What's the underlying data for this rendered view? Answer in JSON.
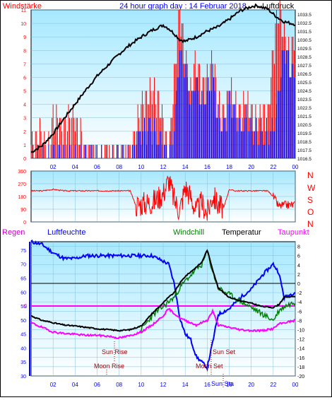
{
  "header": {
    "title": "24 hour graph day : 14 Februar 2018",
    "left_label": "Windstärke",
    "right_label": "Luftdruck"
  },
  "colors": {
    "plot_bg_top": "#a6e8ff",
    "plot_bg_bottom": "#ffffff",
    "wind_avg": "#0000ff",
    "wind_gust": "#ff0000",
    "pressure": "#000000",
    "humidity": "#0000ff",
    "temperature": "#000000",
    "windchill": "#008000",
    "dewpoint": "#ff00ff",
    "axis_red": "#ff0000",
    "axis_blue": "#0000ff",
    "axis_black": "#000000",
    "dark_red_text": "#cc0000"
  },
  "legend_bottom": {
    "regen": "Regen",
    "luftfeuchte": "Luftfeuchte",
    "windchill": "Windchill",
    "temperatur": "Temperatur",
    "taupunkt": "Taupunkt"
  },
  "compass_labels": [
    "N",
    "W",
    "S",
    "O",
    "N"
  ],
  "x_tick_labels": [
    "02",
    "04",
    "06",
    "08",
    "10",
    "12",
    "14",
    "16",
    "18",
    "20",
    "22",
    "00"
  ],
  "annotations": {
    "sun_rise": "Sun Rise",
    "sun_set": "Sun Set",
    "moon_rise": "Moon Rise",
    "moon_set": "Moon Set",
    "sun_sta": "Sun Sta",
    "zero_line_label": "0"
  },
  "chart_data": [
    {
      "type": "line",
      "title": "24 hour graph day : 14 Februar 2018",
      "xlabel": "",
      "x_range": [
        0,
        24
      ],
      "y_left_label": "Windstärke",
      "y_left_range": [
        0,
        11
      ],
      "y_left_ticks": [
        "0",
        "1",
        "2",
        "3",
        "4",
        "5",
        "6",
        "7",
        "8",
        "9",
        "10",
        "11"
      ],
      "y_right_label": "Luftdruck",
      "y_right_range": [
        1016.5,
        1034
      ],
      "y_right_ticks": [
        "1016.5",
        "1017",
        "1017.5",
        "1018",
        "1018.5",
        "1019",
        "1019.5",
        "1020",
        "1020.5",
        "1021",
        "1021.5",
        "1022",
        "1022.5",
        "1023",
        "1023.5",
        "1024",
        "1024.5",
        "1025",
        "1025.5",
        "1026",
        "1026.5",
        "1027",
        "1027.5",
        "1028",
        "1028.5",
        "1029",
        "1029.5",
        "1030",
        "1030.5",
        "1031",
        "1031.5",
        "1032",
        "1032.5",
        "1033",
        "1033.5",
        "1034"
      ],
      "series": [
        {
          "name": "Luftdruck",
          "axis": "right",
          "x": [
            0,
            1,
            2,
            3,
            4,
            5,
            6,
            7,
            8,
            9,
            10,
            11,
            12,
            12.5,
            13,
            13.5,
            14,
            15,
            16,
            17,
            18,
            19,
            20,
            20.5,
            21,
            21.5,
            22,
            22.5,
            23,
            24
          ],
          "values": [
            1017.2,
            1018.0,
            1019.4,
            1021.2,
            1022.9,
            1024.6,
            1026.2,
            1027.5,
            1028.8,
            1029.9,
            1030.8,
            1031.6,
            1032.2,
            1031.8,
            1031.2,
            1030.5,
            1030.3,
            1030.8,
            1031.5,
            1032.0,
            1032.9,
            1033.9,
            1034.4,
            1034.5,
            1034.3,
            1034.1,
            1033.5,
            1033.0,
            1032.6,
            1032.3
          ]
        },
        {
          "name": "Wind gusts",
          "axis": "left",
          "x": [
            0,
            1,
            1.5,
            2,
            3,
            4,
            5,
            6,
            7,
            8,
            9,
            10,
            11,
            12,
            12.5,
            13,
            13.5,
            14,
            14.5,
            15,
            15.5,
            16,
            16.5,
            17,
            17.5,
            18,
            18.5,
            19,
            19.5,
            20,
            20.5,
            21,
            21.5,
            22,
            22.5,
            23,
            23.5,
            24
          ],
          "values": [
            1,
            2,
            0,
            3,
            2,
            3,
            0,
            0,
            0,
            0,
            0,
            4,
            5,
            3,
            0,
            6,
            11,
            7,
            5,
            7,
            5,
            6,
            7,
            4,
            3,
            5,
            4,
            3,
            4,
            3,
            3,
            3,
            3,
            8,
            11,
            9,
            7,
            9
          ]
        },
        {
          "name": "Wind average",
          "axis": "left",
          "x": [
            0,
            1,
            2,
            3,
            4,
            5,
            6,
            7,
            8,
            9,
            10,
            11,
            12,
            12.5,
            13,
            13.5,
            14,
            14.5,
            15,
            15.5,
            16,
            16.5,
            17,
            17.5,
            18,
            18.5,
            19,
            19.5,
            20,
            20.5,
            21,
            21.5,
            22,
            22.5,
            23,
            24
          ],
          "values": [
            0,
            0,
            0,
            0,
            0,
            0,
            0,
            0,
            0,
            0,
            2,
            2,
            1,
            0,
            2,
            8,
            7,
            4,
            6,
            4,
            5,
            6,
            3,
            2,
            4,
            3,
            2,
            3,
            2,
            2,
            2,
            2,
            2,
            5,
            8,
            6
          ]
        }
      ]
    },
    {
      "type": "line",
      "title": "",
      "x_range": [
        0,
        24
      ],
      "y_label": "",
      "y_range": [
        0,
        360
      ],
      "y_ticks": [
        "0",
        "90",
        "180",
        "270",
        "360"
      ],
      "series": [
        {
          "name": "",
          "x": [
            0,
            1,
            2,
            3,
            4,
            5,
            6,
            7,
            8,
            9,
            9.5,
            10,
            11,
            12,
            12.5,
            13,
            13.5,
            14,
            14.5,
            15,
            15.5,
            16,
            16.5,
            17,
            17.5,
            18,
            18.5,
            19,
            19.5,
            20,
            20.5,
            21,
            21.5,
            22,
            22.5,
            23,
            24
          ],
          "values": [
            220,
            220,
            230,
            220,
            220,
            220,
            220,
            220,
            220,
            220,
            120,
            130,
            140,
            200,
            300,
            160,
            80,
            250,
            180,
            70,
            140,
            60,
            190,
            120,
            100,
            230,
            220,
            220,
            220,
            220,
            220,
            220,
            220,
            180,
            110,
            120,
            120
          ]
        }
      ]
    },
    {
      "type": "line",
      "title": "",
      "x_range": [
        0,
        24
      ],
      "y_left_label": "Luftfeuchte",
      "y_left_range": [
        30,
        78
      ],
      "y_left_ticks": [
        "30",
        "35",
        "40",
        "45",
        "50",
        "55",
        "60",
        "65",
        "70",
        "75"
      ],
      "y_right_label": "",
      "y_right_range": [
        -20,
        9
      ],
      "y_right_ticks": [
        "-20",
        "-18",
        "-16",
        "-14",
        "-12",
        "-10",
        "-8",
        "-6",
        "-4",
        "-2",
        "0",
        "2",
        "4",
        "6",
        "8"
      ],
      "hline_right_value": 0,
      "regen_line_label": "0",
      "series": [
        {
          "name": "Luftfeuchte",
          "axis": "left",
          "x": [
            0,
            1,
            2,
            3,
            4,
            5,
            6,
            7,
            8,
            9,
            10,
            11,
            12,
            12.5,
            13,
            13.5,
            14,
            14.5,
            15,
            15.5,
            16,
            16.5,
            17,
            18,
            19,
            20,
            21,
            21.5,
            22,
            22.5,
            23,
            24
          ],
          "values": [
            78,
            77,
            74,
            72,
            72,
            73,
            73,
            73,
            73,
            73,
            73,
            73,
            71,
            70,
            63,
            51,
            45,
            43,
            37,
            35,
            33,
            42,
            52,
            54,
            58,
            61,
            66,
            68,
            70,
            67,
            58,
            60
          ]
        },
        {
          "name": "Temperatur",
          "axis": "right",
          "x": [
            0,
            1,
            2,
            3,
            4,
            5,
            6,
            7,
            8,
            9,
            10,
            11,
            12,
            12.5,
            13,
            13.5,
            14,
            15,
            15.5,
            16,
            16.5,
            17,
            18,
            19,
            20,
            21,
            22,
            22.5,
            23,
            24
          ],
          "values": [
            -7,
            -8,
            -8.5,
            -9,
            -9.2,
            -9.5,
            -9.8,
            -10,
            -10.2,
            -10,
            -9.2,
            -6.5,
            -4.2,
            -3,
            -2,
            0,
            1.5,
            3.5,
            4.5,
            7.2,
            3,
            -1,
            -3,
            -3.8,
            -4.3,
            -5,
            -5.2,
            -4.6,
            -3,
            -2.8
          ]
        },
        {
          "name": "Windchill",
          "axis": "right",
          "x": [
            10,
            11,
            12,
            12.5,
            13,
            13.5,
            14,
            15,
            15.5,
            16,
            16.5,
            17,
            22,
            22.5,
            23,
            24
          ],
          "values": [
            -10,
            -7,
            -5,
            -4,
            -3,
            -1,
            0.5,
            3,
            4,
            6.8,
            2.5,
            -1,
            -8,
            -6,
            -5,
            -4
          ]
        },
        {
          "name": "Taupunkt",
          "axis": "right",
          "x": [
            0,
            1,
            2,
            3,
            4,
            5,
            6,
            7,
            8,
            9,
            10,
            11,
            12,
            12.5,
            13,
            13.5,
            14,
            15,
            16,
            16.5,
            17,
            18,
            19,
            20,
            21,
            22,
            22.5,
            23,
            24
          ],
          "values": [
            -8.5,
            -9.5,
            -10.5,
            -10.8,
            -11,
            -11.2,
            -11.2,
            -11.4,
            -11.8,
            -11.3,
            -10.5,
            -9,
            -7,
            -5.5,
            -6.5,
            -7.5,
            -8,
            -9,
            -8,
            -6,
            -9,
            -9.5,
            -10,
            -10.2,
            -10.2,
            -9.8,
            -8.8,
            -8.5,
            -8
          ]
        }
      ]
    }
  ]
}
